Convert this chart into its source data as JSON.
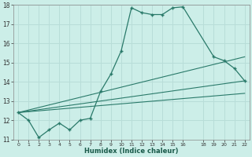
{
  "xlabel": "Humidex (Indice chaleur)",
  "background_color": "#cceee8",
  "grid_color": "#b8ddd8",
  "line_color": "#2a7a6a",
  "xmin": -0.5,
  "xmax": 22.5,
  "ymin": 11,
  "ymax": 18,
  "yticks": [
    11,
    12,
    13,
    14,
    15,
    16,
    17,
    18
  ],
  "xtick_positions": [
    0,
    1,
    2,
    3,
    4,
    5,
    6,
    7,
    8,
    9,
    10,
    11,
    12,
    13,
    14,
    15,
    16,
    18,
    19,
    20,
    21,
    22
  ],
  "xtick_labels": [
    "0",
    "1",
    "2",
    "3",
    "4",
    "5",
    "6",
    "7",
    "8",
    "9",
    "10",
    "11",
    "12",
    "13",
    "14",
    "15",
    "16",
    "18",
    "19",
    "20",
    "21",
    "22"
  ],
  "curve_x": [
    0,
    1,
    2,
    3,
    4,
    5,
    6,
    7,
    8,
    9,
    10,
    11,
    12,
    13,
    14,
    15,
    16,
    19,
    20,
    21,
    22
  ],
  "curve_y": [
    12.4,
    12.0,
    11.1,
    11.5,
    11.85,
    11.5,
    12.0,
    12.1,
    13.5,
    14.4,
    15.6,
    17.85,
    17.6,
    17.5,
    17.5,
    17.85,
    17.9,
    15.3,
    15.1,
    14.7,
    14.05
  ],
  "line1_x": [
    0,
    22
  ],
  "line1_y": [
    12.4,
    14.05
  ],
  "line2_x": [
    0,
    22
  ],
  "line2_y": [
    12.4,
    13.4
  ],
  "line3_x": [
    0,
    22
  ],
  "line3_y": [
    12.4,
    15.3
  ]
}
